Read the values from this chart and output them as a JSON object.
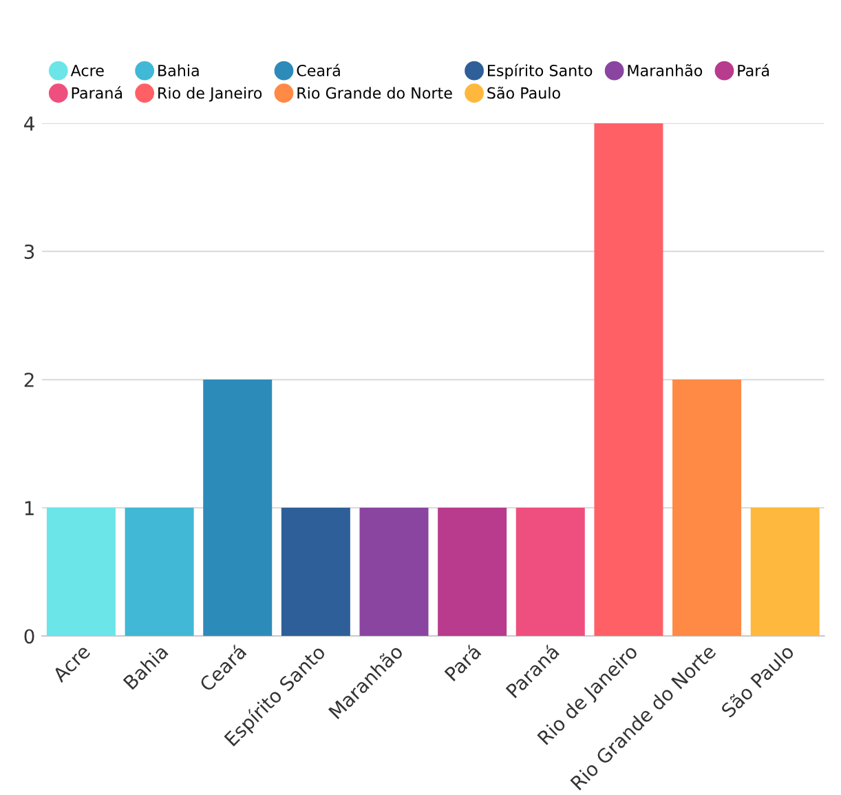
{
  "chart_data": {
    "type": "bar",
    "stacked": true,
    "categories": [
      "Acre",
      "Bahia",
      "Ceará",
      "Espírito Santo",
      "Maranhão",
      "Pará",
      "Paraná",
      "Rio de Janeiro",
      "Rio Grande do Norte",
      "São Paulo"
    ],
    "series": [
      {
        "name": "Acre",
        "color": "#6ce5e8",
        "values": [
          1,
          null,
          null,
          null,
          null,
          null,
          null,
          null,
          null,
          null
        ]
      },
      {
        "name": "Bahia",
        "color": "#41b8d5",
        "values": [
          null,
          1,
          null,
          null,
          null,
          null,
          null,
          null,
          null,
          null
        ]
      },
      {
        "name": "Ceará",
        "color": "#2d8bba",
        "values": [
          null,
          null,
          2,
          null,
          null,
          null,
          null,
          null,
          null,
          null
        ]
      },
      {
        "name": "Espírito Santo",
        "color": "#2f5f98",
        "values": [
          null,
          null,
          null,
          1,
          null,
          null,
          null,
          null,
          null,
          null
        ]
      },
      {
        "name": "Maranhão",
        "color": "#8a45a0",
        "values": [
          null,
          null,
          null,
          null,
          1,
          null,
          null,
          null,
          null,
          null
        ]
      },
      {
        "name": "Pará",
        "color": "#b83b8e",
        "values": [
          null,
          null,
          null,
          null,
          null,
          1,
          null,
          null,
          null,
          null
        ]
      },
      {
        "name": "Paraná",
        "color": "#ef4f7f",
        "values": [
          null,
          null,
          null,
          null,
          null,
          null,
          1,
          null,
          null,
          null
        ]
      },
      {
        "name": "Rio de Janeiro",
        "color": "#ff6066",
        "values": [
          null,
          null,
          null,
          null,
          null,
          null,
          null,
          4,
          null,
          null
        ]
      },
      {
        "name": "Rio Grande do Norte",
        "color": "#ff8a45",
        "values": [
          null,
          null,
          null,
          null,
          null,
          null,
          null,
          null,
          2,
          null
        ]
      },
      {
        "name": "São Paulo",
        "color": "#ffb83e",
        "values": [
          null,
          null,
          null,
          null,
          null,
          null,
          null,
          null,
          null,
          1
        ]
      }
    ],
    "ylim": [
      0,
      4
    ],
    "yticks": [
      0,
      1,
      2,
      3,
      4
    ],
    "grid": "y",
    "legend": "top",
    "marker": "circle"
  }
}
